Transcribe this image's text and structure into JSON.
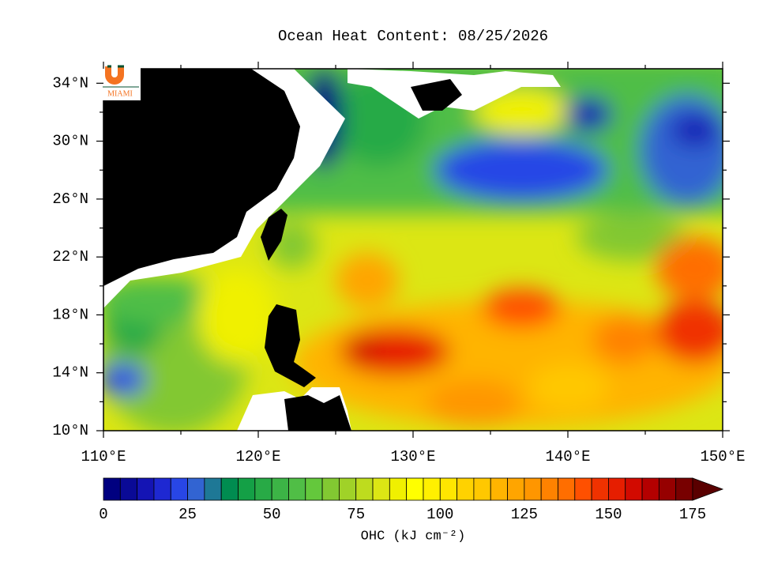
{
  "map": {
    "title": "Ocean Heat Content: 08/25/2026",
    "logo": {
      "text": "MIAMI"
    },
    "xlim": [
      110,
      150
    ],
    "ylim": [
      10,
      35
    ],
    "xticks": [
      {
        "value": 110,
        "label": "110°E"
      },
      {
        "value": 120,
        "label": "120°E"
      },
      {
        "value": 130,
        "label": "130°E"
      },
      {
        "value": 140,
        "label": "140°E"
      },
      {
        "value": 150,
        "label": "150°E"
      }
    ],
    "yticks": [
      {
        "value": 10,
        "label": "10°N"
      },
      {
        "value": 14,
        "label": "14°N"
      },
      {
        "value": 18,
        "label": "18°N"
      },
      {
        "value": 22,
        "label": "22°N"
      },
      {
        "value": 26,
        "label": "26°N"
      },
      {
        "value": 30,
        "label": "30°N"
      },
      {
        "value": 34,
        "label": "34°N"
      }
    ],
    "colorbar": {
      "label": "OHC (kJ cm⁻²)",
      "lim": [
        0,
        175
      ],
      "ticks": [
        0,
        25,
        50,
        75,
        100,
        125,
        150,
        175
      ],
      "colors": [
        "#000080",
        "#0a0a96",
        "#1414b4",
        "#1e28d2",
        "#2846e6",
        "#3264d2",
        "#1e7896",
        "#008c50",
        "#14a046",
        "#28aa46",
        "#3cb446",
        "#50be46",
        "#64c83c",
        "#82c832",
        "#a0d228",
        "#bedc1e",
        "#dce614",
        "#f0f000",
        "#ffff00",
        "#fff000",
        "#ffe600",
        "#ffd200",
        "#ffc800",
        "#ffb400",
        "#ffa500",
        "#ff9600",
        "#ff8200",
        "#ff6e00",
        "#ff5000",
        "#f03200",
        "#e61e00",
        "#d20a00",
        "#b40000",
        "#960000",
        "#780000"
      ],
      "extend_color": "#5a0000"
    }
  }
}
